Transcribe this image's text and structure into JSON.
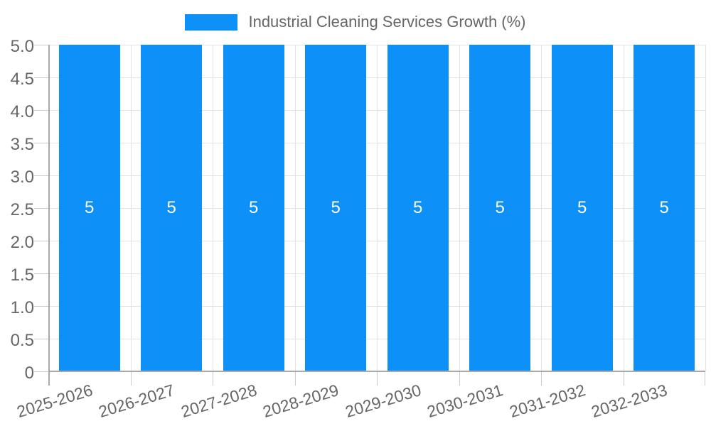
{
  "legend": {
    "label": "Industrial Cleaning Services Growth (%)"
  },
  "chart_data": {
    "type": "bar",
    "title": "Industrial Cleaning Services Growth (%)",
    "categories": [
      "2025-2026",
      "2026-2027",
      "2027-2028",
      "2028-2029",
      "2029-2030",
      "2030-2031",
      "2031-2032",
      "2032-2033"
    ],
    "values": [
      5,
      5,
      5,
      5,
      5,
      5,
      5,
      5
    ],
    "bar_value_labels": [
      "5",
      "5",
      "5",
      "5",
      "5",
      "5",
      "5",
      "5"
    ],
    "xlabel": "",
    "ylabel": "",
    "ylim": [
      0,
      5
    ],
    "ytick_labels": [
      "0",
      "0.5",
      "1.0",
      "1.5",
      "2.0",
      "2.5",
      "3.0",
      "3.5",
      "4.0",
      "4.5",
      "5.0"
    ],
    "grid": true,
    "legend_position": "top-center",
    "x_label_rotation_deg": -17,
    "colors": {
      "bar": "#0d90f8",
      "grid": "#e3e3e3",
      "axis": "#a9a9a9",
      "tick": "#cccccc",
      "text": "#666666",
      "bar_value_label": "#ffffff"
    }
  }
}
